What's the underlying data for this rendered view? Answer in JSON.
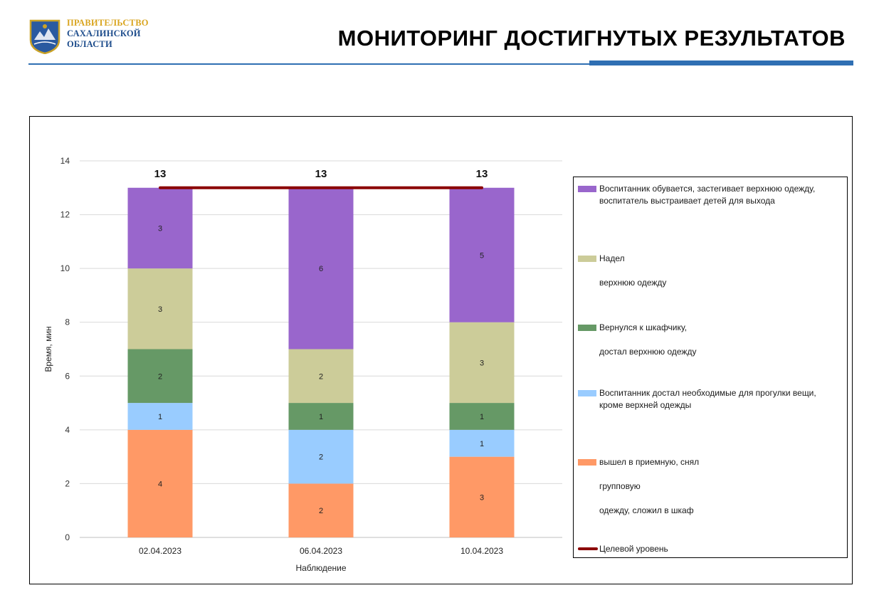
{
  "header": {
    "org_line1": "ПРАВИТЕЛЬСТВО",
    "org_line2": "САХАЛИНСКОЙ",
    "org_line3": "ОБЛАСТИ",
    "title": "МОНИТОРИНГ  ДОСТИГНУТЫХ  РЕЗУЛЬТАТОВ"
  },
  "colors": {
    "accent": "#2f6fb3",
    "seg_orange": "#ff9966",
    "seg_blue": "#99ccff",
    "seg_green": "#669966",
    "seg_khaki": "#cccc99",
    "seg_purple": "#9966cc",
    "target": "#8b0000"
  },
  "chart_data": {
    "type": "bar",
    "stacked": true,
    "categories": [
      "02.04.2023",
      "06.04.2023",
      "10.04.2023"
    ],
    "xlabel": "Наблюдение",
    "ylabel": "Время, мин",
    "ylim": [
      0,
      14
    ],
    "yticks": [
      0,
      2,
      4,
      6,
      8,
      10,
      12,
      14
    ],
    "totals": [
      13,
      13,
      13
    ],
    "series": [
      {
        "name": "вышел в приемную, снял\n групповую\nодежду, сложил  в шкаф",
        "values": [
          4,
          2,
          3
        ],
        "color": "#ff9966"
      },
      {
        "name": "Воспитанник достал необходимые для прогулки вещи, кроме верхней одежды",
        "values": [
          1,
          2,
          1
        ],
        "color": "#99ccff"
      },
      {
        "name": "Вернулся к шкафчику,\nдостал верхнюю одежду",
        "values": [
          2,
          1,
          1
        ],
        "color": "#669966"
      },
      {
        "name": "Надел\nверхнюю одежду",
        "values": [
          3,
          2,
          3
        ],
        "color": "#cccc99"
      },
      {
        "name": "Воспитанник обувается, застегивает верхнюю одежду, воспитатель выстраивает детей для выхода",
        "values": [
          3,
          6,
          5
        ],
        "color": "#9966cc"
      }
    ],
    "target_line": {
      "name": "Целевой уровень",
      "values": [
        13,
        13,
        13
      ],
      "color": "#8b0000"
    },
    "gridlines": true,
    "legend_position": "right"
  },
  "legend": {
    "purple": "Воспитанник обувается, застегивает верхнюю одежду,\nвоспитатель выстраивает детей для выхода",
    "khaki": "Надел\n\nверхнюю одежду",
    "green": "Вернулся к шкафчику,\n\nдостал верхнюю одежду",
    "blue": "Воспитанник достал необходимые для прогулки вещи,\nкроме верхней одежды",
    "orange": "вышел в приемную, снял\n\n групповую\n\nодежду, сложил  в шкаф",
    "target": "Целевой уровень"
  }
}
